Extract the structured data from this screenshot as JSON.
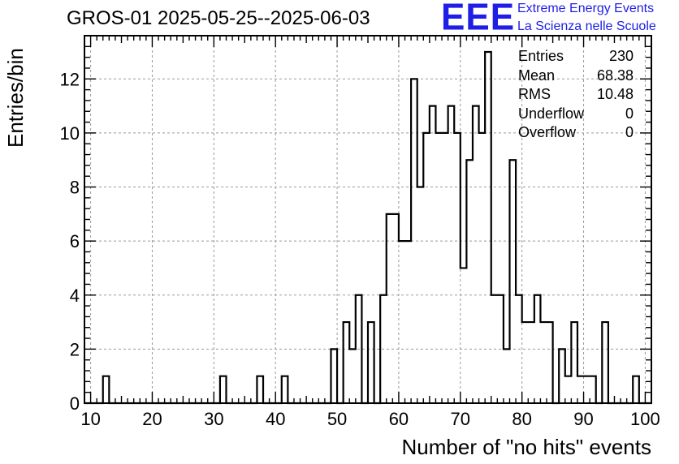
{
  "title": "GROS-01 2025-05-25--2025-06-03",
  "logo": {
    "mark": "EEE",
    "line1": "Extreme Energy Events",
    "line2": "La Scienza nelle Scuole",
    "color": "#1e1ee6"
  },
  "stats": [
    {
      "label": "Entries",
      "value": "230"
    },
    {
      "label": "Mean",
      "value": "68.38"
    },
    {
      "label": "RMS",
      "value": "10.48"
    },
    {
      "label": "Underflow",
      "value": "0"
    },
    {
      "label": "Overflow",
      "value": "0"
    }
  ],
  "chart_data": {
    "type": "histogram",
    "title": "GROS-01 2025-05-25--2025-06-03",
    "xlabel": "Number of \"no hits\" events",
    "ylabel": "Entries/bin",
    "xlim": [
      9,
      101
    ],
    "ylim": [
      0,
      13.6
    ],
    "bin_width": 1,
    "x_ticks": [
      10,
      20,
      30,
      40,
      50,
      60,
      70,
      80,
      90,
      100
    ],
    "y_ticks": [
      0,
      2,
      4,
      6,
      8,
      10,
      12
    ],
    "grid": true,
    "line_color": "#000000",
    "bins": [
      {
        "x": 12,
        "count": 1
      },
      {
        "x": 31,
        "count": 1
      },
      {
        "x": 37,
        "count": 1
      },
      {
        "x": 41,
        "count": 1
      },
      {
        "x": 49,
        "count": 2
      },
      {
        "x": 51,
        "count": 3
      },
      {
        "x": 52,
        "count": 2
      },
      {
        "x": 53,
        "count": 4
      },
      {
        "x": 55,
        "count": 3
      },
      {
        "x": 57,
        "count": 4
      },
      {
        "x": 58,
        "count": 7
      },
      {
        "x": 59,
        "count": 7
      },
      {
        "x": 60,
        "count": 6
      },
      {
        "x": 61,
        "count": 6
      },
      {
        "x": 62,
        "count": 12
      },
      {
        "x": 63,
        "count": 8
      },
      {
        "x": 64,
        "count": 10
      },
      {
        "x": 65,
        "count": 11
      },
      {
        "x": 66,
        "count": 10
      },
      {
        "x": 67,
        "count": 10
      },
      {
        "x": 68,
        "count": 11
      },
      {
        "x": 69,
        "count": 10
      },
      {
        "x": 70,
        "count": 5
      },
      {
        "x": 71,
        "count": 9
      },
      {
        "x": 72,
        "count": 11
      },
      {
        "x": 73,
        "count": 10
      },
      {
        "x": 74,
        "count": 13
      },
      {
        "x": 75,
        "count": 4
      },
      {
        "x": 76,
        "count": 4
      },
      {
        "x": 77,
        "count": 2
      },
      {
        "x": 78,
        "count": 9
      },
      {
        "x": 79,
        "count": 4
      },
      {
        "x": 80,
        "count": 3
      },
      {
        "x": 81,
        "count": 3
      },
      {
        "x": 82,
        "count": 4
      },
      {
        "x": 83,
        "count": 3
      },
      {
        "x": 84,
        "count": 3
      },
      {
        "x": 86,
        "count": 2
      },
      {
        "x": 87,
        "count": 1
      },
      {
        "x": 88,
        "count": 3
      },
      {
        "x": 89,
        "count": 1
      },
      {
        "x": 90,
        "count": 1
      },
      {
        "x": 91,
        "count": 1
      },
      {
        "x": 93,
        "count": 3
      },
      {
        "x": 98,
        "count": 1
      }
    ]
  }
}
